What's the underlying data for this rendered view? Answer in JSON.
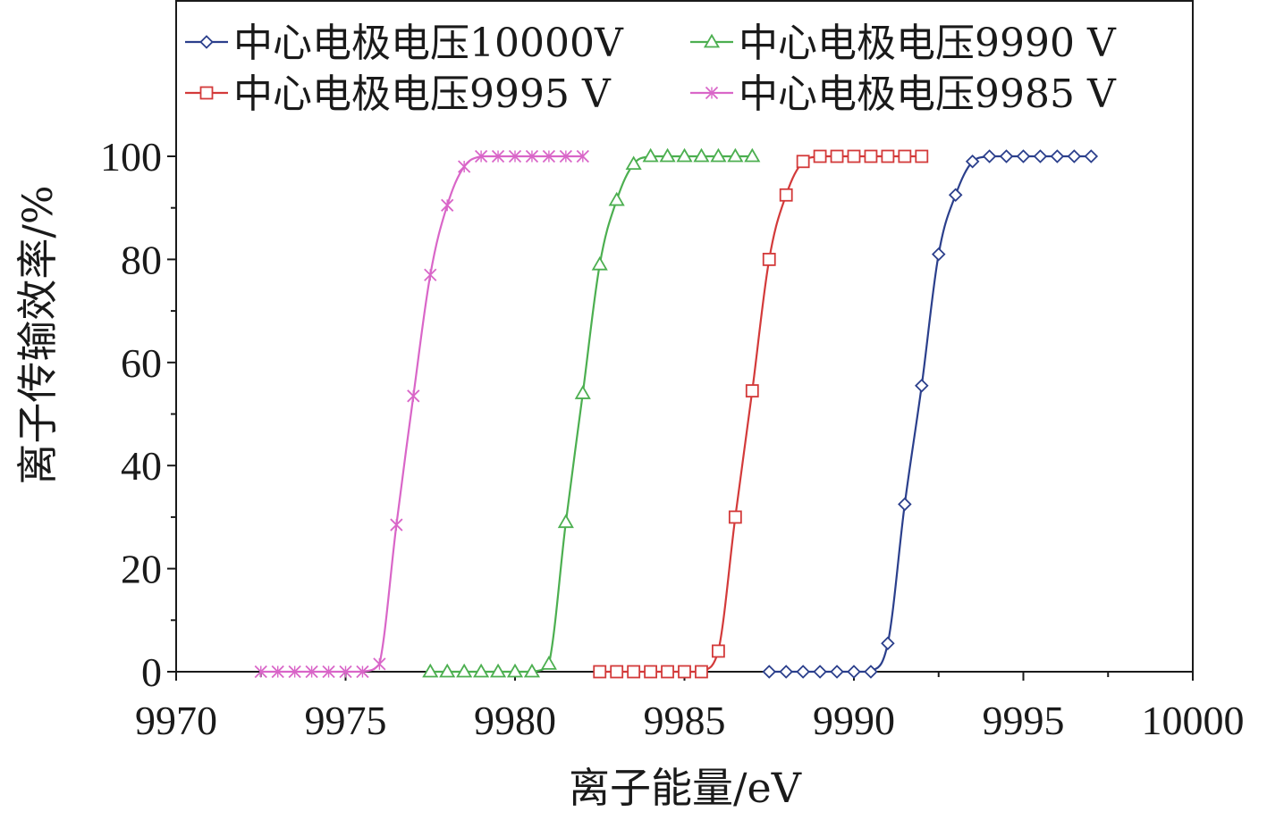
{
  "chart_data": {
    "type": "line",
    "xlabel": "离子能量/eV",
    "ylabel": "离子传输效率/%",
    "xlim": [
      9970,
      10000
    ],
    "ylim": [
      0,
      100
    ],
    "xticks": [
      9970,
      9975,
      9980,
      9985,
      9990,
      9995,
      10000
    ],
    "yticks": [
      0,
      20,
      40,
      60,
      80,
      100
    ],
    "grid": false,
    "legend_position": "top",
    "series": [
      {
        "name": "中心电极电压10000V",
        "color": "#2b3f8c",
        "marker": "diamond",
        "x": [
          9987.5,
          9988,
          9988.5,
          9989,
          9989.5,
          9990,
          9990.5,
          9991,
          9991.5,
          9992,
          9992.5,
          9993,
          9993.5,
          9994,
          9994.5,
          9995,
          9995.5,
          9996,
          9996.5,
          9997
        ],
        "y": [
          0,
          0,
          0,
          0,
          0,
          0,
          0,
          5.5,
          32.5,
          55.5,
          81,
          92.5,
          99,
          100,
          100,
          100,
          100,
          100,
          100,
          100
        ]
      },
      {
        "name": "中心电极电压9990 V",
        "color": "#4caf50",
        "marker": "triangle",
        "x": [
          9977.5,
          9978,
          9978.5,
          9979,
          9979.5,
          9980,
          9980.5,
          9981,
          9981.5,
          9982,
          9982.5,
          9983,
          9983.5,
          9984,
          9984.5,
          9985,
          9985.5,
          9986,
          9986.5,
          9987
        ],
        "y": [
          0,
          0,
          0,
          0,
          0,
          0,
          0,
          1.5,
          29,
          54,
          79,
          91.5,
          98.5,
          100,
          100,
          100,
          100,
          100,
          100,
          100
        ]
      },
      {
        "name": "中心电极电压9995 V",
        "color": "#d33a3a",
        "marker": "square",
        "x": [
          9982.5,
          9983,
          9983.5,
          9984,
          9984.5,
          9985,
          9985.5,
          9986,
          9986.5,
          9987,
          9987.5,
          9988,
          9988.5,
          9989,
          9989.5,
          9990,
          9990.5,
          9991,
          9991.5,
          9992
        ],
        "y": [
          0,
          0,
          0,
          0,
          0,
          0,
          0,
          4,
          30,
          54.5,
          80,
          92.5,
          99,
          100,
          100,
          100,
          100,
          100,
          100,
          100
        ]
      },
      {
        "name": "中心电极电压9985 V",
        "color": "#d966c8",
        "marker": "x",
        "x": [
          9972.5,
          9973,
          9973.5,
          9974,
          9974.5,
          9975,
          9975.5,
          9976,
          9976.5,
          9977,
          9977.5,
          9978,
          9978.5,
          9979,
          9979.5,
          9980,
          9980.5,
          9981,
          9981.5,
          9982
        ],
        "y": [
          0,
          0,
          0,
          0,
          0,
          0,
          0,
          1.5,
          28.5,
          53.5,
          77,
          90.5,
          98,
          100,
          100,
          100,
          100,
          100,
          100,
          100
        ]
      }
    ]
  }
}
